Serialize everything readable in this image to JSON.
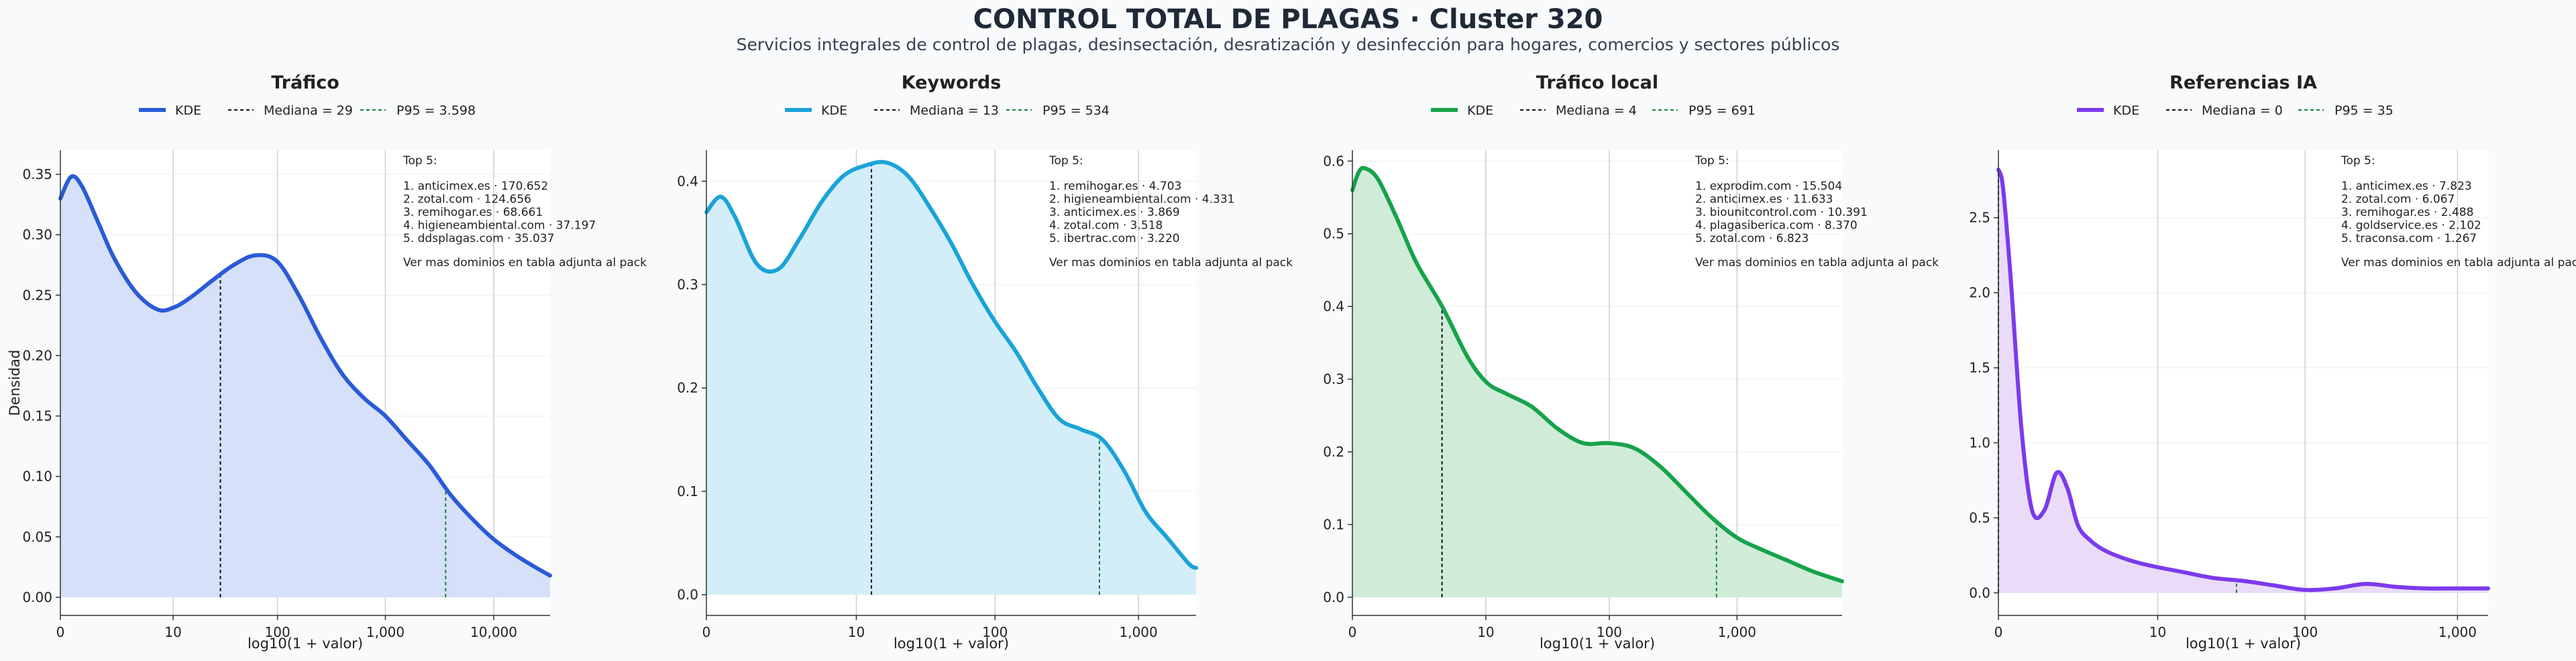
{
  "page": {
    "title": "CONTROL TOTAL DE PLAGAS · Cluster 320",
    "subtitle": "Servicios integrales de control de plagas, desinsectación, desratización y desinfección para hogares, comercios y sectores públicos"
  },
  "chart_data": [
    {
      "type": "area",
      "title": "Tráfico",
      "xlabel": "log10(1 + valor)",
      "ylabel": "Densidad",
      "color": "#2a5bd7",
      "fill": "#d6e0f8",
      "xlim": [
        0,
        4.52
      ],
      "ylim": [
        -0.015,
        0.37
      ],
      "yticks": [
        0.0,
        0.05,
        0.1,
        0.15,
        0.2,
        0.25,
        0.3,
        0.35
      ],
      "ytick_labels": [
        "0.00",
        "0.05",
        "0.10",
        "0.15",
        "0.20",
        "0.25",
        "0.30",
        "0.35"
      ],
      "xticks": [
        0,
        1.041,
        2.004,
        3.0,
        4.0
      ],
      "xtick_labels": [
        "0",
        "10",
        "100",
        "1,000",
        "10,000"
      ],
      "kde": {
        "x": [
          0,
          0.1,
          0.2,
          0.35,
          0.5,
          0.7,
          0.9,
          1.05,
          1.2,
          1.4,
          1.6,
          1.8,
          2.0,
          2.2,
          2.4,
          2.6,
          2.8,
          3.0,
          3.2,
          3.4,
          3.6,
          3.8,
          4.0,
          4.2,
          4.4,
          4.52
        ],
        "y": [
          0.33,
          0.348,
          0.34,
          0.31,
          0.28,
          0.252,
          0.238,
          0.24,
          0.248,
          0.262,
          0.275,
          0.283,
          0.278,
          0.25,
          0.215,
          0.185,
          0.165,
          0.15,
          0.13,
          0.11,
          0.085,
          0.065,
          0.048,
          0.035,
          0.024,
          0.018
        ]
      },
      "legend": {
        "kde": "KDE",
        "median": "Mediana = 29",
        "p95": "P95 = 3.598"
      },
      "median_log": 1.477,
      "p95_log": 3.556,
      "top5": {
        "title": "Top 5:",
        "items": [
          "1. anticimex.es · 170.652",
          "2. zotal.com · 124.656",
          "3. remihogar.es · 68.661",
          "4. higieneambiental.com · 37.197",
          "5. ddsplagas.com · 35.037"
        ],
        "footer": "Ver mas dominios en tabla adjunta al pack"
      }
    },
    {
      "type": "area",
      "title": "Keywords",
      "xlabel": "log10(1 + valor)",
      "ylabel": "",
      "color": "#1aa3d8",
      "fill": "#d3eef9",
      "xlim": [
        0,
        3.4
      ],
      "ylim": [
        -0.02,
        0.43
      ],
      "yticks": [
        0.0,
        0.1,
        0.2,
        0.3,
        0.4
      ],
      "ytick_labels": [
        "0.0",
        "0.1",
        "0.2",
        "0.3",
        "0.4"
      ],
      "xticks": [
        0,
        1.041,
        2.004,
        3.0
      ],
      "xtick_labels": [
        "0",
        "10",
        "100",
        "1,000"
      ],
      "kde": {
        "x": [
          0,
          0.1,
          0.2,
          0.35,
          0.5,
          0.65,
          0.8,
          0.95,
          1.1,
          1.25,
          1.4,
          1.55,
          1.7,
          1.85,
          2.0,
          2.15,
          2.3,
          2.45,
          2.6,
          2.75,
          2.9,
          3.05,
          3.2,
          3.35,
          3.4
        ],
        "y": [
          0.37,
          0.385,
          0.365,
          0.32,
          0.315,
          0.345,
          0.38,
          0.405,
          0.415,
          0.418,
          0.405,
          0.375,
          0.34,
          0.3,
          0.265,
          0.235,
          0.2,
          0.17,
          0.16,
          0.15,
          0.12,
          0.08,
          0.055,
          0.03,
          0.026
        ]
      },
      "legend": {
        "kde": "KDE",
        "median": "Mediana = 13",
        "p95": "P95 = 534"
      },
      "median_log": 1.146,
      "p95_log": 2.729,
      "top5": {
        "title": "Top 5:",
        "items": [
          "1. remihogar.es · 4.703",
          "2. higieneambiental.com · 4.331",
          "3. anticimex.es · 3.869",
          "4. zotal.com · 3.518",
          "5. ibertrac.com · 3.220"
        ],
        "footer": "Ver mas dominios en tabla adjunta al pack"
      }
    },
    {
      "type": "area",
      "title": "Tráfico local",
      "xlabel": "log10(1 + valor)",
      "ylabel": "",
      "color": "#16a34a",
      "fill": "#d0ecd8",
      "xlim": [
        0,
        3.82
      ],
      "ylim": [
        -0.025,
        0.615
      ],
      "yticks": [
        0.0,
        0.1,
        0.2,
        0.3,
        0.4,
        0.5,
        0.6
      ],
      "ytick_labels": [
        "0.0",
        "0.1",
        "0.2",
        "0.3",
        "0.4",
        "0.5",
        "0.6"
      ],
      "xticks": [
        0,
        1.041,
        2.004,
        3.0
      ],
      "xtick_labels": [
        "0",
        "10",
        "100",
        "1,000"
      ],
      "kde": {
        "x": [
          0,
          0.05,
          0.1,
          0.2,
          0.35,
          0.5,
          0.7,
          0.9,
          1.05,
          1.2,
          1.4,
          1.6,
          1.8,
          2.0,
          2.2,
          2.4,
          2.6,
          2.8,
          3.0,
          3.2,
          3.4,
          3.6,
          3.82
        ],
        "y": [
          0.56,
          0.585,
          0.59,
          0.575,
          0.52,
          0.46,
          0.4,
          0.33,
          0.295,
          0.28,
          0.262,
          0.232,
          0.212,
          0.212,
          0.205,
          0.18,
          0.145,
          0.11,
          0.082,
          0.065,
          0.05,
          0.035,
          0.022
        ]
      },
      "legend": {
        "kde": "KDE",
        "median": "Mediana = 4",
        "p95": "P95 = 691"
      },
      "median_log": 0.699,
      "p95_log": 2.84,
      "top5": {
        "title": "Top 5:",
        "items": [
          "1. exprodim.com · 15.504",
          "2. anticimex.es · 11.633",
          "3. biounitcontrol.com · 10.391",
          "4. plagasiberica.com · 8.370",
          "5. zotal.com · 6.823"
        ],
        "footer": "Ver mas dominios en tabla adjunta al pack"
      }
    },
    {
      "type": "area",
      "title": "Referencias IA",
      "xlabel": "log10(1 + valor)",
      "ylabel": "",
      "color": "#7c3aed",
      "fill": "#eadcf8",
      "xlim": [
        0,
        3.2
      ],
      "ylim": [
        -0.15,
        2.95
      ],
      "yticks": [
        0.0,
        0.5,
        1.0,
        1.5,
        2.0,
        2.5
      ],
      "ytick_labels": [
        "0.0",
        "0.5",
        "1.0",
        "1.5",
        "2.0",
        "2.5"
      ],
      "xticks": [
        0,
        1.041,
        2.004,
        3.0
      ],
      "xtick_labels": [
        "0",
        "10",
        "100",
        "1,000"
      ],
      "kde": {
        "x": [
          0,
          0.03,
          0.08,
          0.15,
          0.22,
          0.3,
          0.38,
          0.45,
          0.52,
          0.6,
          0.7,
          0.85,
          1.0,
          1.2,
          1.4,
          1.6,
          1.8,
          2.0,
          2.2,
          2.4,
          2.6,
          2.8,
          3.0,
          3.2
        ],
        "y": [
          2.82,
          2.7,
          2.1,
          1.1,
          0.55,
          0.55,
          0.8,
          0.7,
          0.45,
          0.35,
          0.28,
          0.22,
          0.18,
          0.14,
          0.1,
          0.08,
          0.05,
          0.02,
          0.03,
          0.06,
          0.04,
          0.03,
          0.03,
          0.03
        ]
      },
      "legend": {
        "kde": "KDE",
        "median": "Mediana = 0",
        "p95": "P95 = 35"
      },
      "median_log": 0,
      "p95_log": 1.556,
      "top5": {
        "title": "Top 5:",
        "items": [
          "1. anticimex.es · 7.823",
          "2. zotal.com · 6.067",
          "3. remihogar.es · 2.488",
          "4. goldservice.es · 2.102",
          "5. traconsa.com · 1.267"
        ],
        "footer": "Ver mas dominios en tabla adjunta al pack"
      }
    }
  ]
}
